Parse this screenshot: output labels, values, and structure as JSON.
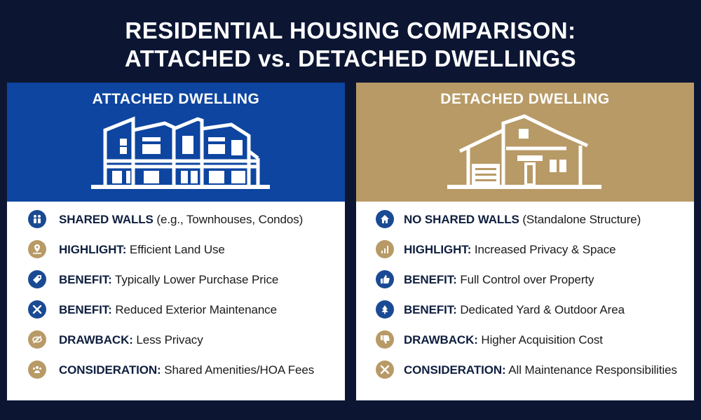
{
  "title": {
    "line1": "RESIDENTIAL HOUSING COMPARISON:",
    "line2": "ATTACHED vs. DETACHED DWELLINGS"
  },
  "attached": {
    "heading": "ATTACHED DWELLING",
    "items": [
      {
        "icon": "people-icon",
        "color": "#1a4a93",
        "label": "SHARED WALLS",
        "text": " (e.g., Townhouses, Condos)"
      },
      {
        "icon": "map-pin-icon",
        "color": "#b89a66",
        "label": "HIGHLIGHT:",
        "text": " Efficient Land Use"
      },
      {
        "icon": "price-tag-icon",
        "color": "#1a4a93",
        "label": "BENEFIT:",
        "text": " Typically Lower Purchase Price"
      },
      {
        "icon": "tools-icon",
        "color": "#1a4a93",
        "label": "BENEFIT:",
        "text": " Reduced Exterior Maintenance"
      },
      {
        "icon": "eye-off-icon",
        "color": "#b89a66",
        "label": "DRAWBACK:",
        "text": " Less Privacy"
      },
      {
        "icon": "group-icon",
        "color": "#b89a66",
        "label": "CONSIDERATION:",
        "text": " Shared Amenities/HOA Fees"
      }
    ]
  },
  "detached": {
    "heading": "DETACHED DWELLING",
    "items": [
      {
        "icon": "home-icon",
        "color": "#1a4a93",
        "label": "NO SHARED WALLS",
        "text": " (Standalone Structure)"
      },
      {
        "icon": "bar-chart-icon",
        "color": "#b89a66",
        "label": "HIGHLIGHT:",
        "text": " Increased Privacy & Space"
      },
      {
        "icon": "thumbs-up-icon",
        "color": "#1a4a93",
        "label": "BENEFIT:",
        "text": " Full Control over Property"
      },
      {
        "icon": "yard-icon",
        "color": "#1a4a93",
        "label": "BENEFIT:",
        "text": " Dedicated Yard & Outdoor Area"
      },
      {
        "icon": "thumbs-down-icon",
        "color": "#b89a66",
        "label": "DRAWBACK:",
        "text": " Higher Acquisition Cost"
      },
      {
        "icon": "tools-icon",
        "color": "#b89a66",
        "label": "CONSIDERATION:",
        "text": " All Maintenance Responsibilities"
      }
    ]
  }
}
